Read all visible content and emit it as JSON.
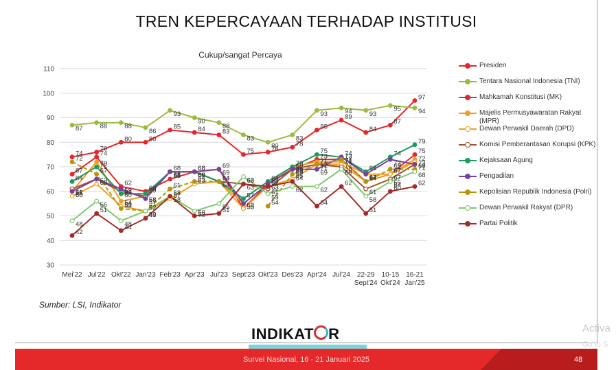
{
  "slide": {
    "title": "TREN KEPERCAYAAN TERHADAP INSTITUSI",
    "source": "Sumber: LSI, Indikator",
    "logo_text_left": "INDIKAT",
    "logo_text_right": "R",
    "footer": "Survei Nasional, 16 - 21 Januari 2025",
    "page_number": "48",
    "watermark_line1": "Activa",
    "watermark_line2": "Go to S"
  },
  "chart_data": {
    "type": "line",
    "title": "Cukup/sangat Percaya",
    "xlabel": "",
    "ylabel": "",
    "ylim": [
      30,
      110
    ],
    "yticks": [
      30,
      40,
      50,
      60,
      70,
      80,
      90,
      100,
      110
    ],
    "grid": true,
    "legend_position": "right",
    "x": [
      "Mei'22",
      "Jul'22",
      "Okt'22",
      "Jan'23",
      "Feb'23",
      "Apr'23",
      "Jul'23",
      "Sept'23",
      "Okt'23",
      "Des'23",
      "Apr'24",
      "Jul'24",
      "22-29 Sept'24",
      "10-15 Okt'24",
      "16-21 Jan'25"
    ],
    "x_lines": [
      [
        "Mei'22"
      ],
      [
        "Jul'22"
      ],
      [
        "Okt'22"
      ],
      [
        "Jan'23"
      ],
      [
        "Feb'23"
      ],
      [
        "Apr'23"
      ],
      [
        "Jul'23"
      ],
      [
        "Sept'23"
      ],
      [
        "Okt'23"
      ],
      [
        "Des'23"
      ],
      [
        "Apr'24"
      ],
      [
        "Jul'24"
      ],
      [
        "22-29",
        "Sept'24"
      ],
      [
        "10-15",
        "Okt'24"
      ],
      [
        "16-21",
        "Jan'25"
      ]
    ],
    "series": [
      {
        "name": "Presiden",
        "color": "#e8252a",
        "marker": "filled",
        "values": [
          74,
          76,
          80,
          80,
          85,
          84,
          83,
          75,
          76,
          78,
          85,
          89,
          84,
          87,
          97
        ]
      },
      {
        "name": "Tentara Nasional Indonesia (TNI)",
        "color": "#9bbb3c",
        "marker": "filled",
        "values": [
          87,
          88,
          88,
          86,
          93,
          90,
          88,
          83,
          80,
          83,
          93,
          94,
          93,
          95,
          94
        ]
      },
      {
        "name": "Mahkamah Konstitusi (MK)",
        "color": "#e8252a",
        "marker": "filled",
        "values": [
          67,
          74,
          62,
          60,
          65,
          68,
          69,
          53,
          63,
          69,
          73,
          73,
          64,
          67,
          75
        ]
      },
      {
        "name": "Majelis Permusyawaratan Rakyat (MPR)",
        "color": "#f0a020",
        "marker": "filled",
        "values": [
          60,
          72,
          56,
          58,
          68,
          68,
          64,
          55,
          63,
          70,
          72,
          72,
          67,
          67,
          73
        ]
      },
      {
        "name": "Dewan Perwakil Daerah (DPD)",
        "color": "#f0a020",
        "marker": "open",
        "values": [
          58,
          63,
          54,
          52,
          57,
          63,
          64,
          53,
          62,
          65,
          71,
          71,
          64,
          67,
          72
        ]
      },
      {
        "name": "Komisi Pemberantasan Korupsi (KPK)",
        "color": "#a0522d",
        "marker": "open",
        "values": [
          61,
          65,
          60,
          58,
          68,
          68,
          64,
          63,
          61,
          69,
          71,
          70,
          61,
          65,
          71
        ]
      },
      {
        "name": "Kejaksaan Agung",
        "color": "#1a9c5c",
        "marker": "filled",
        "values": [
          64,
          70,
          59,
          59,
          68,
          68,
          64,
          57,
          64,
          70,
          75,
          74,
          68,
          74,
          79
        ]
      },
      {
        "name": "Pengadilan",
        "color": "#7b3fa0",
        "marker": "filled",
        "values": [
          60,
          65,
          61,
          57,
          68,
          68,
          69,
          55,
          63,
          69,
          69,
          74,
          67,
          73,
          71
        ]
      },
      {
        "name": "Kepolisian Republik Indonesia (Polri)",
        "color": "#b8960c",
        "marker": "filled",
        "values": [
          72,
          67,
          53,
          52,
          61,
          64,
          64,
          null,
          54,
          67,
          71,
          73,
          64,
          69,
          69
        ]
      },
      {
        "name": "Dewan Perwakil Rakyat (DPR)",
        "color": "#7dc96b",
        "marker": "open",
        "values": [
          48,
          56,
          48,
          52,
          58,
          52,
          55,
          66,
          59,
          62,
          62,
          69,
          58,
          64,
          68
        ]
      },
      {
        "name": "Partai Politik",
        "color": "#a52a2a",
        "marker": "filled",
        "values": [
          42,
          51,
          44,
          49,
          58,
          50,
          51,
          63,
          62,
          64,
          54,
          62,
          51,
          60,
          62
        ]
      }
    ]
  }
}
